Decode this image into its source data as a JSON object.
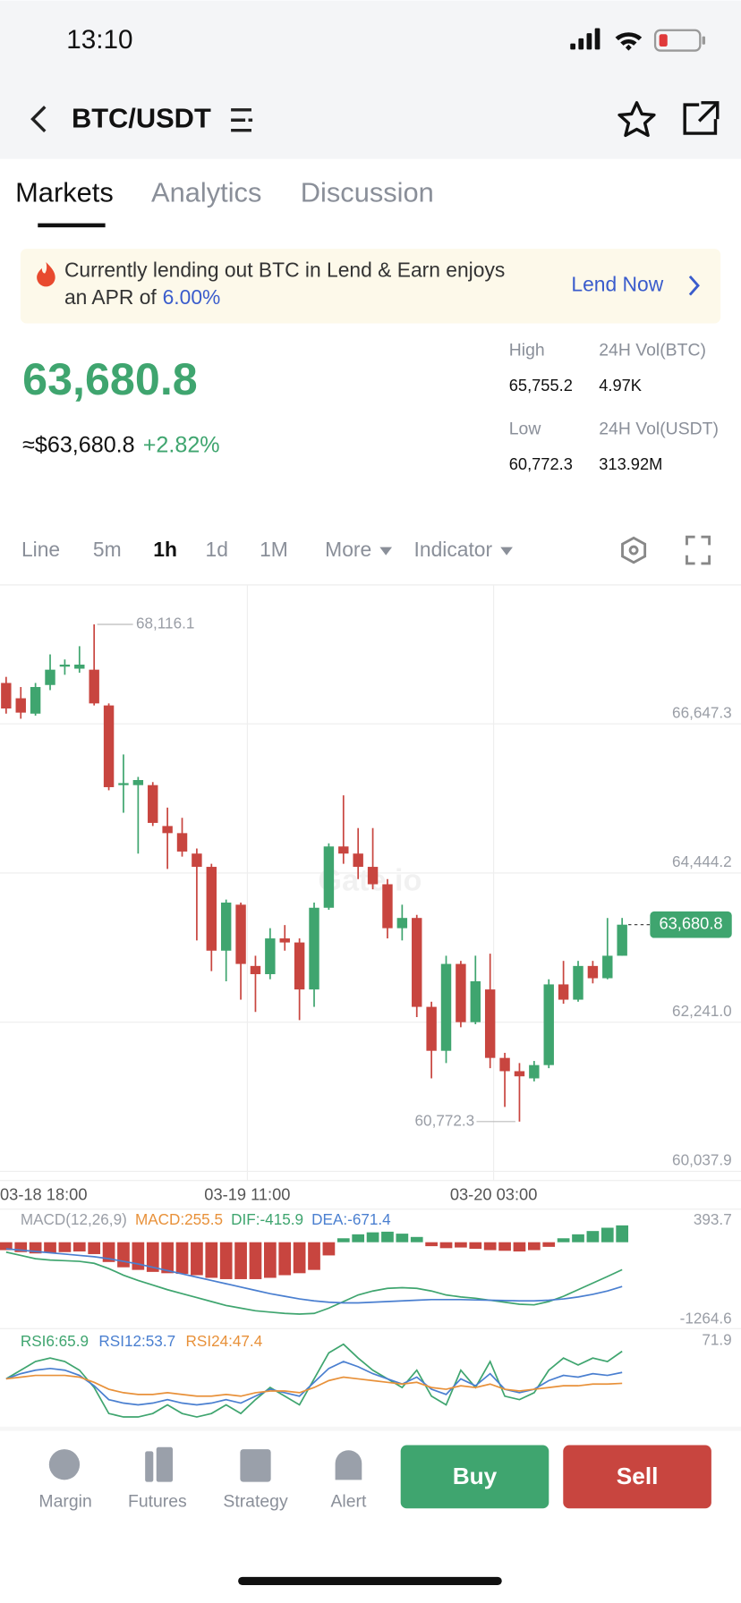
{
  "status": {
    "time": "13:10"
  },
  "header": {
    "pair": "BTC/USDT"
  },
  "tabs": [
    "Markets",
    "Analytics",
    "Discussion"
  ],
  "banner": {
    "text_line1": "Currently lending out BTC in Lend & Earn enjoys",
    "text_line2": "an APR of",
    "rate": "6.00%",
    "action": "Lend Now"
  },
  "price": {
    "last": "63,680.8",
    "usd": "≈$63,680.8",
    "change": "+2.82%"
  },
  "stats": [
    {
      "label": "High",
      "value": "65,755.2"
    },
    {
      "label": "24H Vol(BTC)",
      "value": "4.97K"
    },
    {
      "label": "Low",
      "value": "60,772.3"
    },
    {
      "label": "24H Vol(USDT)",
      "value": "313.92M"
    }
  ],
  "toolbar": [
    "Line",
    "5m",
    "1h",
    "1d",
    "1M",
    "More",
    "Indicator"
  ],
  "toolbar_active": 2,
  "watermark": "Gate.io",
  "chart_data": {
    "type": "candlestick",
    "up_color": "#3fa56f",
    "down_color": "#c8453f",
    "open": [
      67251,
      67025,
      66798,
      67221,
      67492,
      67462,
      67447,
      66919,
      65742,
      65742,
      65742,
      65138,
      65033,
      64731,
      64535,
      63297,
      63976,
      63071,
      62950,
      63478,
      63418,
      62724,
      63931,
      64836,
      64731,
      64535,
      64278,
      63629,
      63780,
      62467,
      61818,
      63101,
      62241,
      62724,
      61713,
      61517,
      61411,
      61607,
      62799,
      62573,
      63071,
      62890,
      63222
    ],
    "high": [
      67341,
      67191,
      67251,
      67673,
      67598,
      67794,
      68116.1,
      66949,
      66195,
      65863,
      65787,
      65410,
      65259,
      64806,
      64580,
      64052,
      64007,
      63222,
      63629,
      63675,
      63478,
      64007,
      64882,
      65591,
      65108,
      65108,
      64354,
      63976,
      63825,
      62543,
      63222,
      63146,
      63222,
      63252,
      61788,
      61637,
      61668,
      62875,
      63146,
      63146,
      63146,
      63780,
      63780
    ],
    "low": [
      66798,
      66723,
      66768,
      67145,
      67372,
      67402,
      66919,
      65666,
      65334,
      64731,
      65138,
      64504,
      64686,
      63448,
      62995,
      62845,
      62573,
      62392,
      62875,
      63297,
      62271,
      62467,
      63901,
      64580,
      64354,
      64203,
      63478,
      63448,
      62316,
      61411,
      61637,
      62166,
      62211,
      61562,
      60989,
      60772.3,
      61366,
      61562,
      62513,
      62543,
      62814,
      62875,
      63222
    ],
    "close": [
      66874,
      66813,
      67191,
      67447,
      67522,
      67522,
      66949,
      65712,
      65772,
      65817,
      65184,
      65033,
      64761,
      64535,
      63297,
      64007,
      63101,
      62950,
      63478,
      63418,
      62724,
      63931,
      64836,
      64731,
      64535,
      64278,
      63629,
      63780,
      62467,
      61818,
      63101,
      62241,
      62845,
      61713,
      61517,
      61441,
      61607,
      62799,
      62573,
      63071,
      62890,
      63222,
      63680.8
    ],
    "ylim": [
      59902,
      68684
    ],
    "yticks": [
      {
        "value": 66647.3,
        "label": "66,647.3"
      },
      {
        "value": 64444.2,
        "label": "64,444.2"
      },
      {
        "value": 62241.0,
        "label": "62,241.0"
      },
      {
        "value": 60037.9,
        "label": "60,037.9"
      }
    ],
    "high_marker": {
      "value": 68116.1,
      "label": "68,116.1"
    },
    "low_marker": {
      "value": 60772.3,
      "label": "60,772.3"
    },
    "last_price": {
      "value": 63680.8,
      "label": "63,680.8"
    },
    "x_labels": [
      "03-18 18:00",
      "03-19 11:00",
      "03-20 03:00"
    ],
    "grid": true
  },
  "macd": {
    "title": "MACD(12,26,9)",
    "legend": [
      "MACD:255.5",
      "DIF:-415.9",
      "DEA:-671.4"
    ],
    "legend_colors": [
      "#e8913a",
      "#3fa56f",
      "#4a7fd0"
    ],
    "ylim": [
      -1264.6,
      393.7
    ],
    "yticks": [
      393.7,
      -1264.6
    ],
    "histogram": [
      -120,
      -150,
      -170,
      -160,
      -150,
      -140,
      -180,
      -300,
      -380,
      -420,
      -450,
      -470,
      -480,
      -500,
      -540,
      -560,
      -560,
      -560,
      -540,
      -500,
      -470,
      -420,
      -200,
      60,
      120,
      150,
      160,
      130,
      80,
      -60,
      -90,
      -80,
      -100,
      -120,
      -130,
      -140,
      -120,
      -70,
      60,
      120,
      170,
      220,
      255.5
    ],
    "series": [
      {
        "color": "#3fa56f",
        "values": [
          -150,
          -200,
          -250,
          -270,
          -280,
          -290,
          -320,
          -400,
          -500,
          -580,
          -650,
          -720,
          -780,
          -840,
          -900,
          -960,
          -1000,
          -1040,
          -1060,
          -1080,
          -1090,
          -1080,
          -1000,
          -900,
          -800,
          -740,
          -700,
          -690,
          -700,
          -740,
          -800,
          -830,
          -850,
          -880,
          -910,
          -940,
          -950,
          -900,
          -820,
          -720,
          -620,
          -520,
          -415.9
        ]
      },
      {
        "color": "#4a7fd0",
        "values": [
          -100,
          -120,
          -140,
          -160,
          -180,
          -200,
          -220,
          -250,
          -290,
          -330,
          -380,
          -430,
          -480,
          -530,
          -580,
          -630,
          -680,
          -730,
          -780,
          -820,
          -860,
          -890,
          -910,
          -920,
          -920,
          -910,
          -900,
          -890,
          -880,
          -870,
          -870,
          -870,
          -875,
          -880,
          -885,
          -890,
          -890,
          -880,
          -860,
          -830,
          -790,
          -740,
          -671.4
        ]
      }
    ]
  },
  "rsi": {
    "ylim": [
      20,
      71.9
    ],
    "yticks": [
      71.9
    ],
    "series": [
      {
        "name": "RSI6:65.9",
        "color": "#3fa56f",
        "values": [
          50,
          55,
          60,
          62,
          60,
          55,
          45,
          30,
          28,
          28,
          30,
          35,
          30,
          28,
          30,
          35,
          30,
          38,
          45,
          40,
          35,
          50,
          65,
          70,
          62,
          55,
          50,
          45,
          55,
          40,
          35,
          55,
          45,
          60,
          40,
          38,
          42,
          55,
          62,
          58,
          62,
          60,
          65.9
        ]
      },
      {
        "name": "RSI12:53.7",
        "color": "#4a7fd0",
        "values": [
          50,
          53,
          55,
          56,
          55,
          52,
          46,
          38,
          36,
          35,
          36,
          38,
          36,
          35,
          36,
          38,
          36,
          40,
          44,
          42,
          40,
          48,
          56,
          60,
          57,
          53,
          50,
          47,
          51,
          44,
          41,
          50,
          46,
          53,
          44,
          42,
          44,
          49,
          52,
          51,
          53,
          52,
          53.7
        ]
      },
      {
        "name": "RSI24:47.4",
        "color": "#e8913a",
        "values": [
          50,
          51,
          52,
          52,
          52,
          51,
          48,
          44,
          42,
          41,
          41,
          42,
          41,
          40,
          40,
          41,
          40,
          42,
          43,
          43,
          42,
          45,
          49,
          51,
          50,
          49,
          48,
          47,
          48,
          45,
          44,
          46,
          45,
          47,
          44,
          43,
          44,
          45,
          46,
          46,
          47,
          47,
          47.4
        ]
      }
    ]
  },
  "nav": [
    "Margin",
    "Futures",
    "Strategy",
    "Alert"
  ],
  "buy": "Buy",
  "sell": "Sell"
}
